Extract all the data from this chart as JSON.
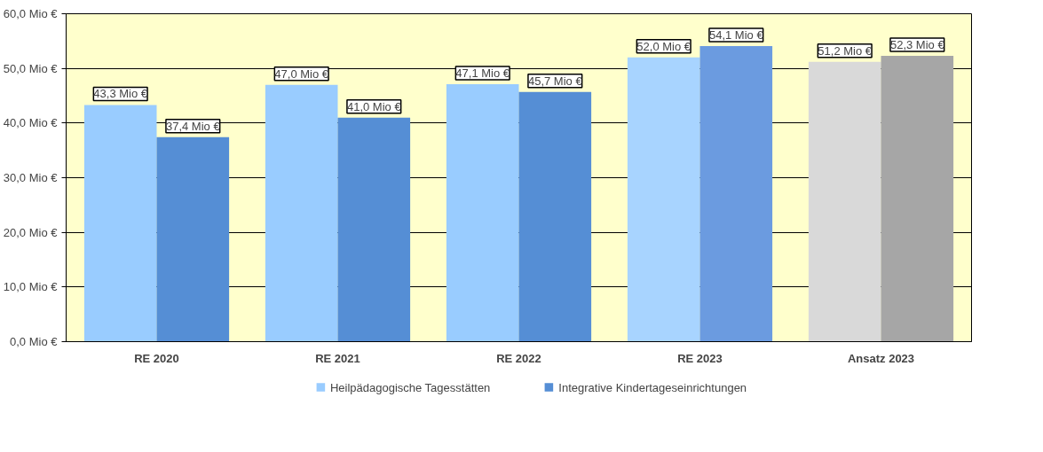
{
  "chart_data": {
    "type": "bar",
    "categories": [
      "RE 2020",
      "RE 2021",
      "RE 2022",
      "RE 2023",
      "Ansatz 2023"
    ],
    "series": [
      {
        "name": "Heilpädagogische Tagesstätten",
        "color": "#99ccff",
        "colors": [
          "#99ccff",
          "#99ccff",
          "#99ccff",
          "#a8d4ff",
          "#d9d9d9"
        ],
        "values": [
          43.3,
          47.0,
          47.1,
          52.0,
          51.2
        ],
        "value_labels": [
          "43,3 Mio €",
          "47,0 Mio €",
          "47,1 Mio €",
          "52,0 Mio €",
          "51,2 Mio €"
        ]
      },
      {
        "name": "Integrative Kindertageseinrichtungen",
        "color": "#558ed5",
        "colors": [
          "#558ed5",
          "#558ed5",
          "#558ed5",
          "#6b9be0",
          "#a6a6a6"
        ],
        "values": [
          37.4,
          41.0,
          45.7,
          54.1,
          52.3
        ],
        "value_labels": [
          "37,4 Mio €",
          "41,0 Mio €",
          "45,7 Mio €",
          "54,1 Mio €",
          "52,3 Mio €"
        ]
      }
    ],
    "ylim": [
      0,
      60
    ],
    "yticks": [
      {
        "value": 0,
        "label": "0,0 Mio €"
      },
      {
        "value": 10,
        "label": "10,0 Mio €"
      },
      {
        "value": 20,
        "label": "20,0 Mio €"
      },
      {
        "value": 30,
        "label": "30,0 Mio €"
      },
      {
        "value": 40,
        "label": "40,0 Mio €"
      },
      {
        "value": 50,
        "label": "50,0 Mio €"
      },
      {
        "value": 60,
        "label": "60,0 Mio €"
      }
    ],
    "grid": "y",
    "legend": "bottom"
  }
}
